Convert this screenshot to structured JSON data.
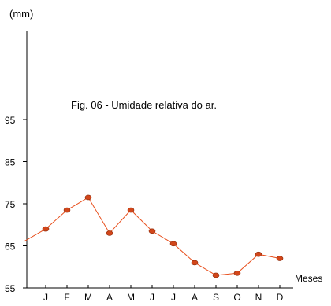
{
  "chart_data": {
    "type": "line",
    "title": "Fig. 06 - Umidade relativa do ar.",
    "ylabel": "(mm)",
    "xlabel": "Meses",
    "categories": [
      "J",
      "F",
      "M",
      "A",
      "M",
      "J",
      "J",
      "A",
      "S",
      "O",
      "N",
      "D"
    ],
    "series": [
      {
        "values": [
          69,
          73.5,
          76.5,
          68,
          73.5,
          68.5,
          65.5,
          61,
          58,
          58.5,
          63,
          62
        ]
      }
    ],
    "y_ticks": [
      "55",
      "65",
      "75",
      "85",
      "95"
    ],
    "ylim": [
      55,
      95
    ],
    "line_start_value": 66,
    "line_color": "#e8501e",
    "marker_color": "#d2461a",
    "axis_color": "#000000",
    "grid": false
  }
}
